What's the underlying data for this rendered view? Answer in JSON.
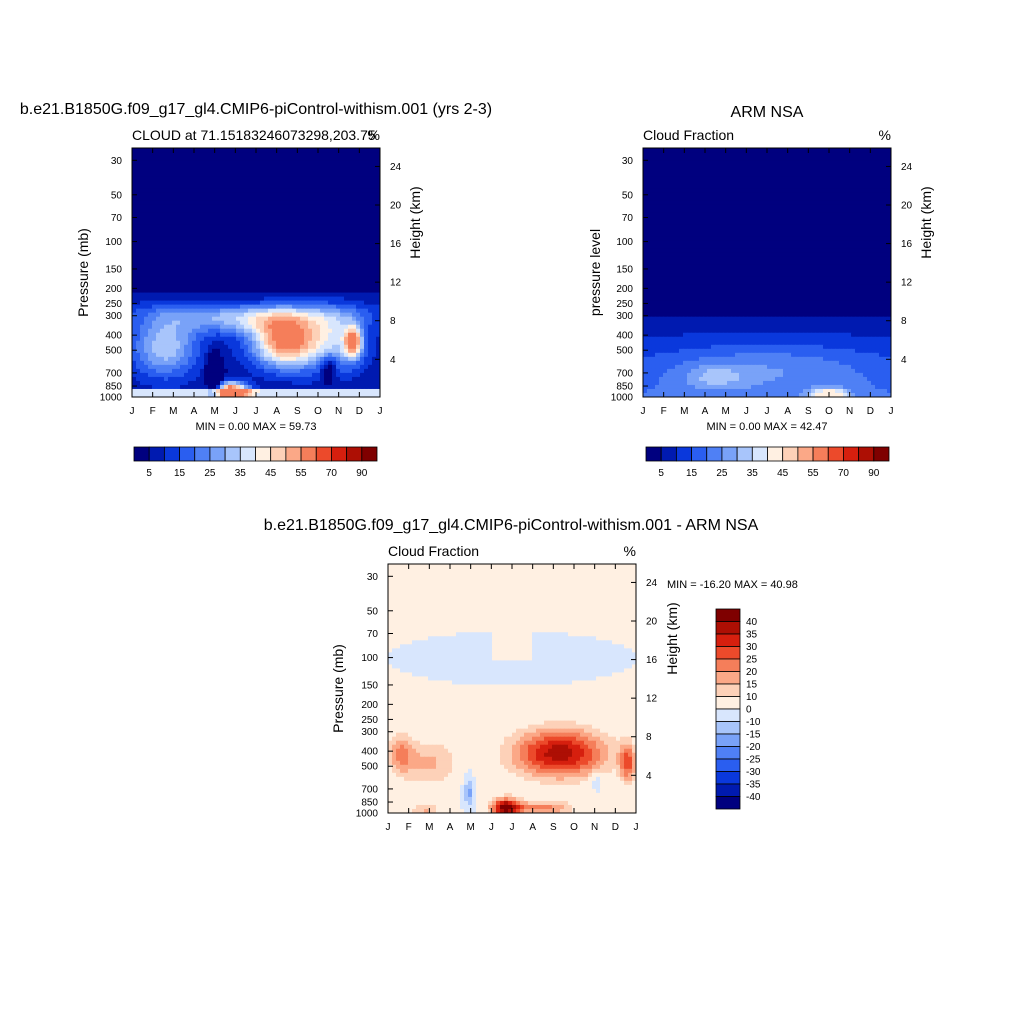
{
  "page": {
    "months": [
      "J",
      "F",
      "M",
      "A",
      "M",
      "J",
      "J",
      "A",
      "S",
      "O",
      "N",
      "D",
      "J"
    ],
    "pressure_ticks": [
      30,
      50,
      70,
      100,
      150,
      200,
      250,
      300,
      400,
      500,
      700,
      850,
      1000
    ],
    "height_ticks": [
      4,
      8,
      12,
      16,
      20,
      24
    ]
  },
  "chart_data": [
    {
      "type": "heatmap",
      "title": "b.e21.B1850G.f09_g17_gl4.CMIP6-piControl-withism.001 (yrs 2-3)",
      "subtitle_left": "CLOUD at 71.15183246073298,203.75",
      "subtitle_right": "%",
      "ylabel": "Pressure (mb)",
      "ylabel_right": "Height (km)",
      "stats": "MIN =   0.00 MAX =  59.73",
      "min": 0.0,
      "max": 59.73,
      "colorbar": {
        "levels": [
          0,
          5,
          10,
          15,
          20,
          25,
          30,
          35,
          40,
          45,
          50,
          55,
          60,
          70,
          80,
          90,
          100
        ],
        "labels": [
          "5",
          "15",
          "25",
          "35",
          "45",
          "55",
          "70",
          "90"
        ],
        "colors": [
          "#00007f",
          "#001ab0",
          "#0a38dc",
          "#2a5ef0",
          "#4f80f5",
          "#79a2f8",
          "#a8c5fb",
          "#d8e6fd",
          "#fff0e2",
          "#fdd1b8",
          "#fba887",
          "#f57e5a",
          "#ec4a2b",
          "#d61f0e",
          "#ad0f04",
          "#7f0000"
        ]
      }
    },
    {
      "type": "heatmap",
      "title": "ARM NSA",
      "subtitle_left": "Cloud Fraction",
      "subtitle_right": "%",
      "ylabel": "pressure level",
      "ylabel_right": "Height (km)",
      "stats": "MIN =   0.00 MAX =  42.47",
      "min": 0.0,
      "max": 42.47,
      "colorbar": {
        "levels": [
          0,
          5,
          10,
          15,
          20,
          25,
          30,
          35,
          40,
          45,
          50,
          55,
          60,
          70,
          80,
          90,
          100
        ],
        "labels": [
          "5",
          "15",
          "25",
          "35",
          "45",
          "55",
          "70",
          "90"
        ],
        "colors": [
          "#00007f",
          "#001ab0",
          "#0a38dc",
          "#2a5ef0",
          "#4f80f5",
          "#79a2f8",
          "#a8c5fb",
          "#d8e6fd",
          "#fff0e2",
          "#fdd1b8",
          "#fba887",
          "#f57e5a",
          "#ec4a2b",
          "#d61f0e",
          "#ad0f04",
          "#7f0000"
        ]
      }
    },
    {
      "type": "heatmap",
      "title": "b.e21.B1850G.f09_g17_gl4.CMIP6-piControl-withism.001 - ARM NSA",
      "subtitle_left": "Cloud Fraction",
      "subtitle_right": "%",
      "ylabel": "Pressure (mb)",
      "ylabel_right": "Height (km)",
      "stats": "MIN = -16.20 MAX =  40.98",
      "min": -16.2,
      "max": 40.98,
      "colorbar": {
        "levels": [
          -45,
          -40,
          -35,
          -30,
          -25,
          -20,
          -15,
          -10,
          0,
          10,
          15,
          20,
          25,
          30,
          35,
          40,
          45
        ],
        "labels": [
          "40",
          "35",
          "30",
          "25",
          "20",
          "15",
          "10",
          "0",
          "-10",
          "-15",
          "-20",
          "-25",
          "-30",
          "-35",
          "-40"
        ],
        "colors": [
          "#00007f",
          "#001ab0",
          "#0a38dc",
          "#2a5ef0",
          "#4f80f5",
          "#79a2f8",
          "#a8c5fb",
          "#d8e6fd",
          "#fff0e2",
          "#fdd1b8",
          "#fba887",
          "#f57e5a",
          "#ec4a2b",
          "#d61f0e",
          "#ad0f04",
          "#7f0000"
        ]
      }
    }
  ]
}
